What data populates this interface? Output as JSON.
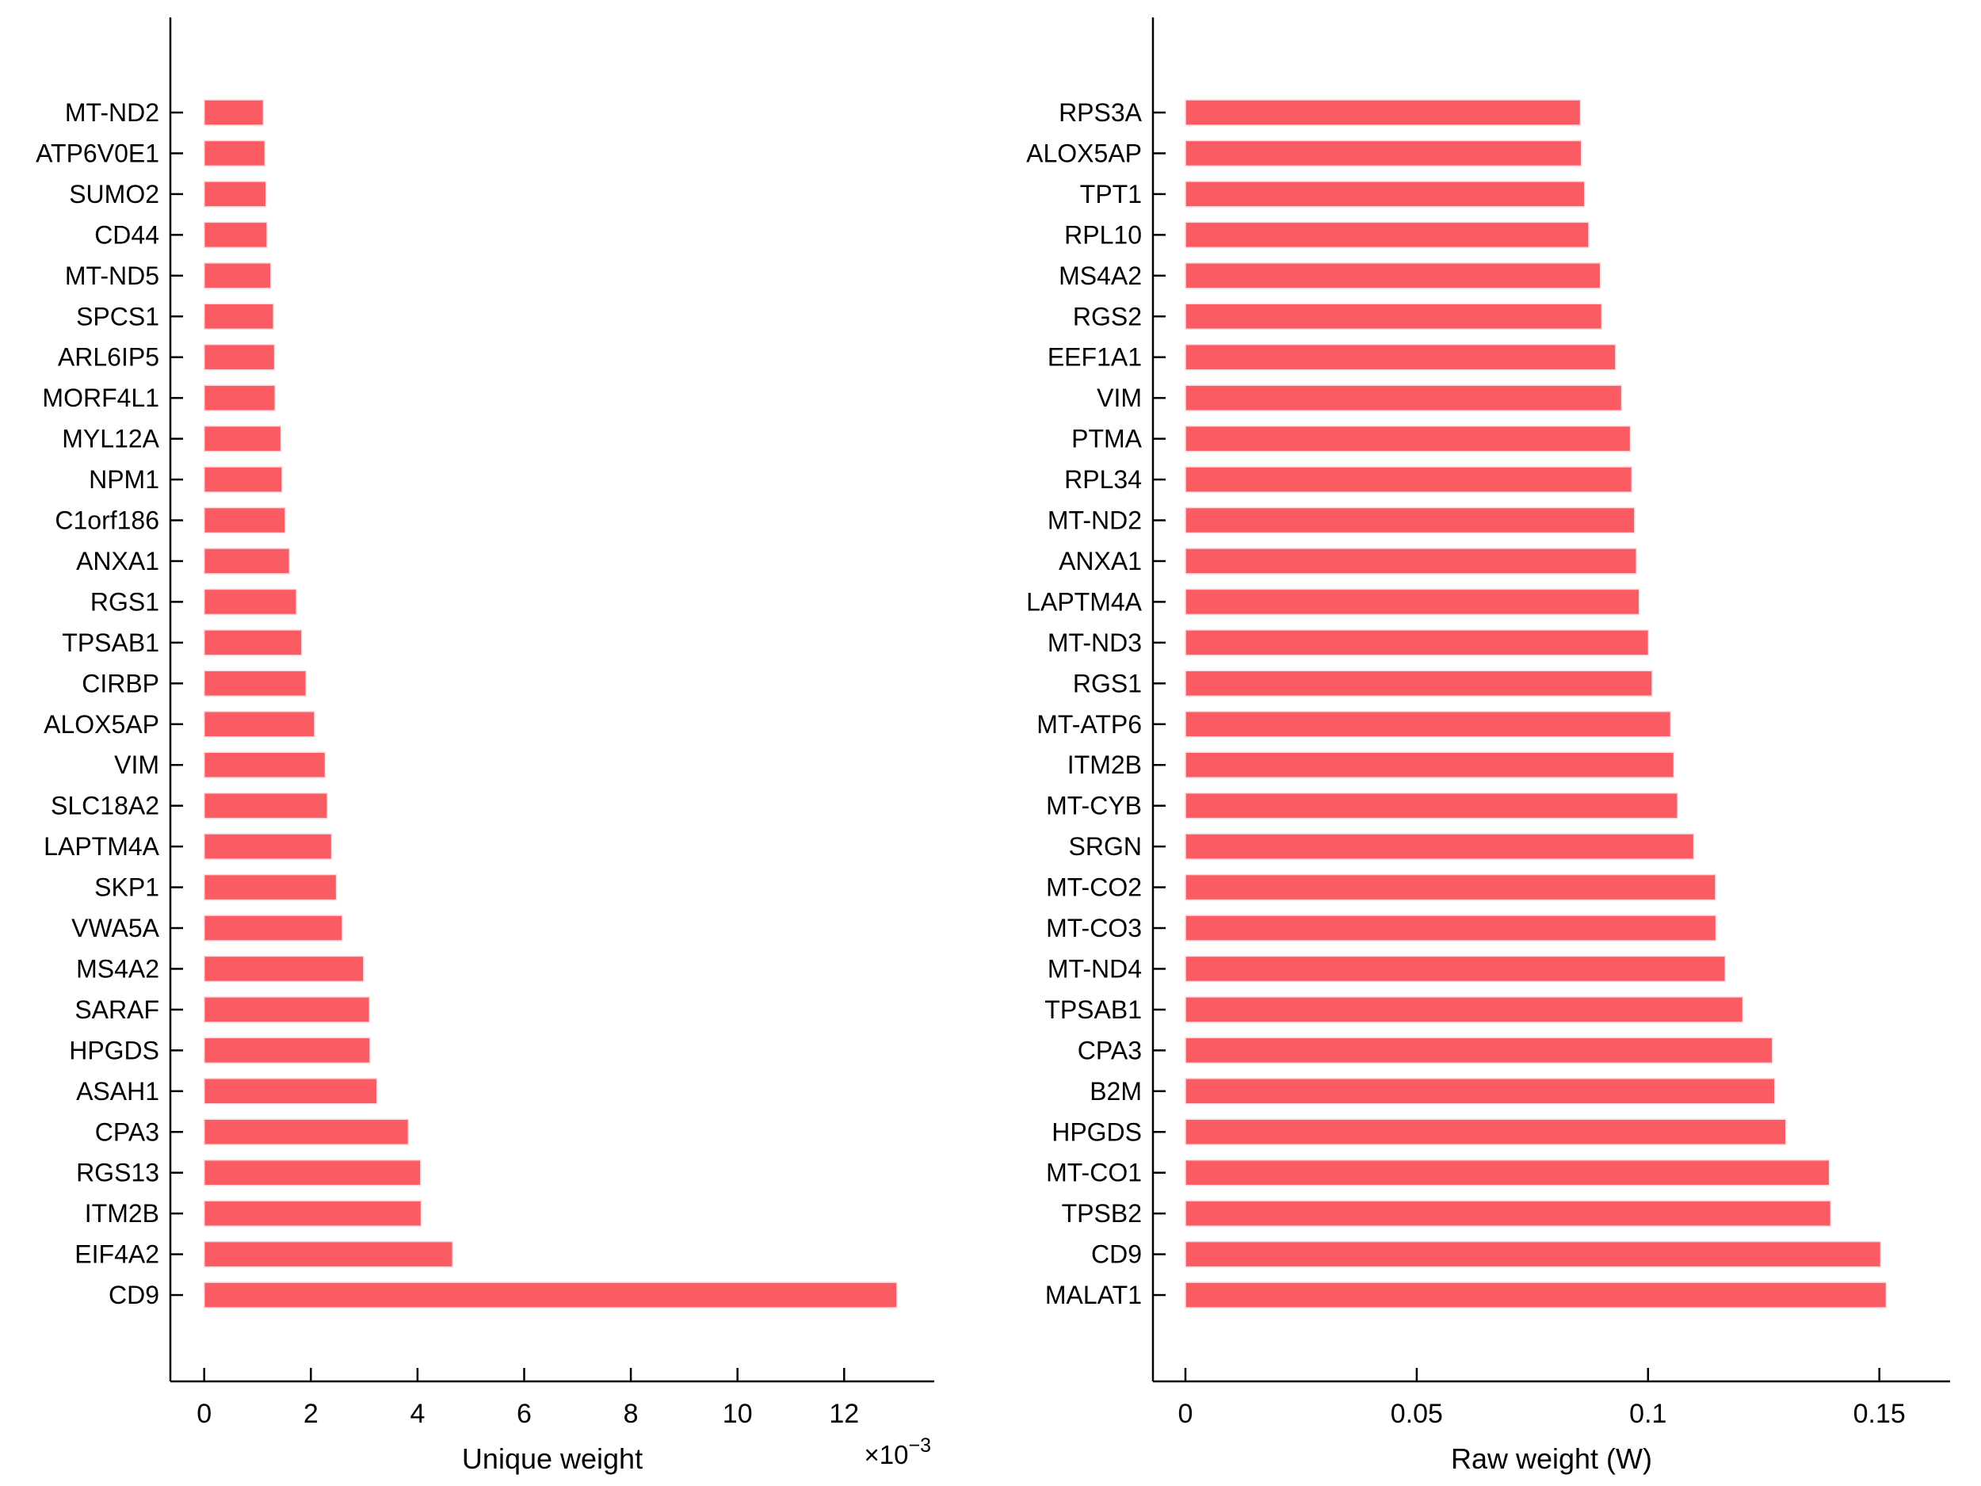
{
  "figure": {
    "background": "#ffffff",
    "bar_color": "#fb5c63",
    "bar_edge_color": "#ffd9dc",
    "axis_color": "#000000",
    "text_color": "#000000"
  },
  "chart_data": [
    {
      "type": "bar",
      "orientation": "horizontal",
      "title": "",
      "xlabel": "Unique weight",
      "x_offset_text": {
        "prefix": "×10",
        "exponent": "−3"
      },
      "value_unit": "1e-3",
      "xlim": [
        -0.63,
        13.68
      ],
      "xticks": [
        0,
        2,
        4,
        6,
        8,
        10,
        12
      ],
      "xtick_labels": [
        "0",
        "2",
        "4",
        "6",
        "8",
        "10",
        "12"
      ],
      "grid": false,
      "legend": null,
      "categories": [
        "MT-ND2",
        "ATP6V0E1",
        "SUMO2",
        "CD44",
        "MT-ND5",
        "SPCS1",
        "ARL6IP5",
        "MORF4L1",
        "MYL12A",
        "NPM1",
        "C1orf186",
        "ANXA1",
        "RGS1",
        "TPSAB1",
        "CIRBP",
        "ALOX5AP",
        "VIM",
        "SLC18A2",
        "LAPTM4A",
        "SKP1",
        "VWA5A",
        "MS4A2",
        "SARAF",
        "HPGDS",
        "ASAH1",
        "CPA3",
        "RGS13",
        "ITM2B",
        "EIF4A2",
        "CD9"
      ],
      "values": [
        1.11,
        1.14,
        1.16,
        1.18,
        1.25,
        1.3,
        1.32,
        1.33,
        1.44,
        1.46,
        1.52,
        1.6,
        1.73,
        1.83,
        1.91,
        2.07,
        2.27,
        2.31,
        2.39,
        2.48,
        2.59,
        2.99,
        3.1,
        3.11,
        3.24,
        3.83,
        4.06,
        4.07,
        4.66,
        12.99
      ]
    },
    {
      "type": "bar",
      "orientation": "horizontal",
      "title": "",
      "xlabel": "Raw weight (W)",
      "x_offset_text": null,
      "value_unit": "1",
      "xlim": [
        -0.007,
        0.165
      ],
      "xticks": [
        0,
        0.05,
        0.1,
        0.15
      ],
      "xtick_labels": [
        "0",
        "0.05",
        "0.1",
        "0.15"
      ],
      "grid": false,
      "legend": null,
      "categories": [
        "RPS3A",
        "ALOX5AP",
        "TPT1",
        "RPL10",
        "MS4A2",
        "RGS2",
        "EEF1A1",
        "VIM",
        "PTMA",
        "RPL34",
        "MT-ND2",
        "ANXA1",
        "LAPTM4A",
        "MT-ND3",
        "RGS1",
        "MT-ATP6",
        "ITM2B",
        "MT-CYB",
        "SRGN",
        "MT-CO2",
        "MT-CO3",
        "MT-ND4",
        "TPSAB1",
        "CPA3",
        "B2M",
        "HPGDS",
        "MT-CO1",
        "TPSB2",
        "CD9",
        "MALAT1"
      ],
      "values": [
        0.0854,
        0.0856,
        0.0863,
        0.0872,
        0.0897,
        0.09,
        0.093,
        0.0943,
        0.0962,
        0.0965,
        0.0971,
        0.0975,
        0.0981,
        0.1001,
        0.1009,
        0.1049,
        0.1056,
        0.1064,
        0.1099,
        0.1146,
        0.1147,
        0.1167,
        0.1205,
        0.1269,
        0.1274,
        0.1298,
        0.1392,
        0.1395,
        0.1503,
        0.1515
      ]
    }
  ]
}
